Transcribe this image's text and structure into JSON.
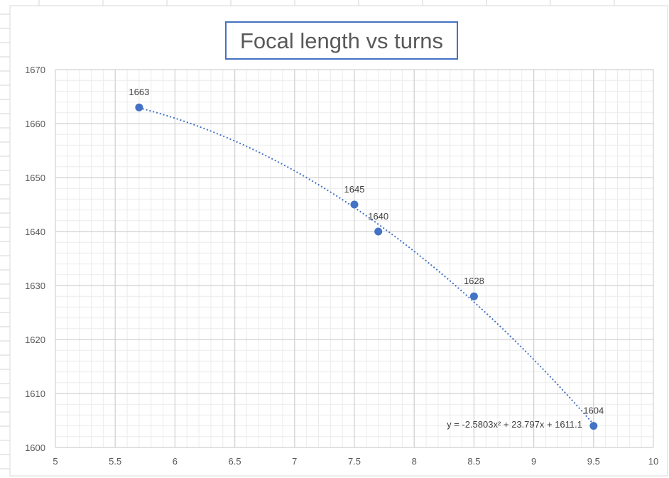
{
  "chart_data": {
    "type": "scatter",
    "title": "Focal length vs turns",
    "xlabel": "",
    "ylabel": "",
    "xlim": [
      5,
      10
    ],
    "ylim": [
      1600,
      1670
    ],
    "xticks": [
      5,
      5.5,
      6,
      6.5,
      7,
      7.5,
      8,
      8.5,
      9,
      9.5,
      10
    ],
    "yticks": [
      1600,
      1610,
      1620,
      1630,
      1640,
      1650,
      1660,
      1670
    ],
    "grid": true,
    "marker_color": "#4472C4",
    "trendline": {
      "type": "polynomial",
      "order": 2,
      "coefficients": [
        -2.5803,
        23.797,
        1611.1
      ],
      "equation_label": "y = -2.5803x² + 23.797x + 1611.1",
      "color": "#4472C4",
      "style": "dotted"
    },
    "series": [
      {
        "points": [
          {
            "x": 5.7,
            "y": 1663,
            "label": "1663"
          },
          {
            "x": 7.5,
            "y": 1645,
            "label": "1645"
          },
          {
            "x": 7.7,
            "y": 1640,
            "label": "1640"
          },
          {
            "x": 8.5,
            "y": 1628,
            "label": "1628"
          },
          {
            "x": 9.5,
            "y": 1604,
            "label": "1604"
          }
        ]
      }
    ]
  }
}
